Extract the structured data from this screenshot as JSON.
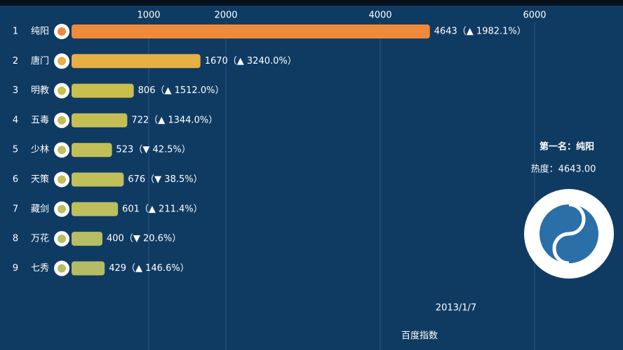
{
  "chart_data": {
    "type": "bar",
    "orientation": "horizontal",
    "ranks": [
      1,
      2,
      3,
      4,
      5,
      6,
      7,
      8,
      9
    ],
    "categories": [
      "纯阳",
      "唐门",
      "明教",
      "五毒",
      "少林",
      "天策",
      "藏剑",
      "万花",
      "七秀"
    ],
    "values": [
      4643,
      1670,
      806,
      722,
      523,
      676,
      601,
      400,
      429
    ],
    "value_labels": [
      "4643（▲ 1982.1%）",
      "1670（▲ 3240.0%）",
      "806（▲ 1512.0%）",
      "722（▲ 1344.0%）",
      "523（▼ 42.5%）",
      "676（▼ 38.5%）",
      "601（▲ 211.4%）",
      "400（▼ 20.6%）",
      "429（▲ 146.6%）"
    ],
    "colors": [
      "#ef8a3c",
      "#e6b044",
      "#c9bf4f",
      "#c4be55",
      "#c2bf58",
      "#c0bf5a",
      "#bdbf5d",
      "#b7bd62",
      "#b4bc64"
    ],
    "xlim": [
      0,
      7000
    ],
    "xticks": [
      1000,
      2000,
      4000,
      6000
    ],
    "grid": true,
    "side_title": "第一名：纯阳",
    "side_value": "热度：4643.00",
    "date": "2013/1/7",
    "subtitle": "百度指数"
  }
}
